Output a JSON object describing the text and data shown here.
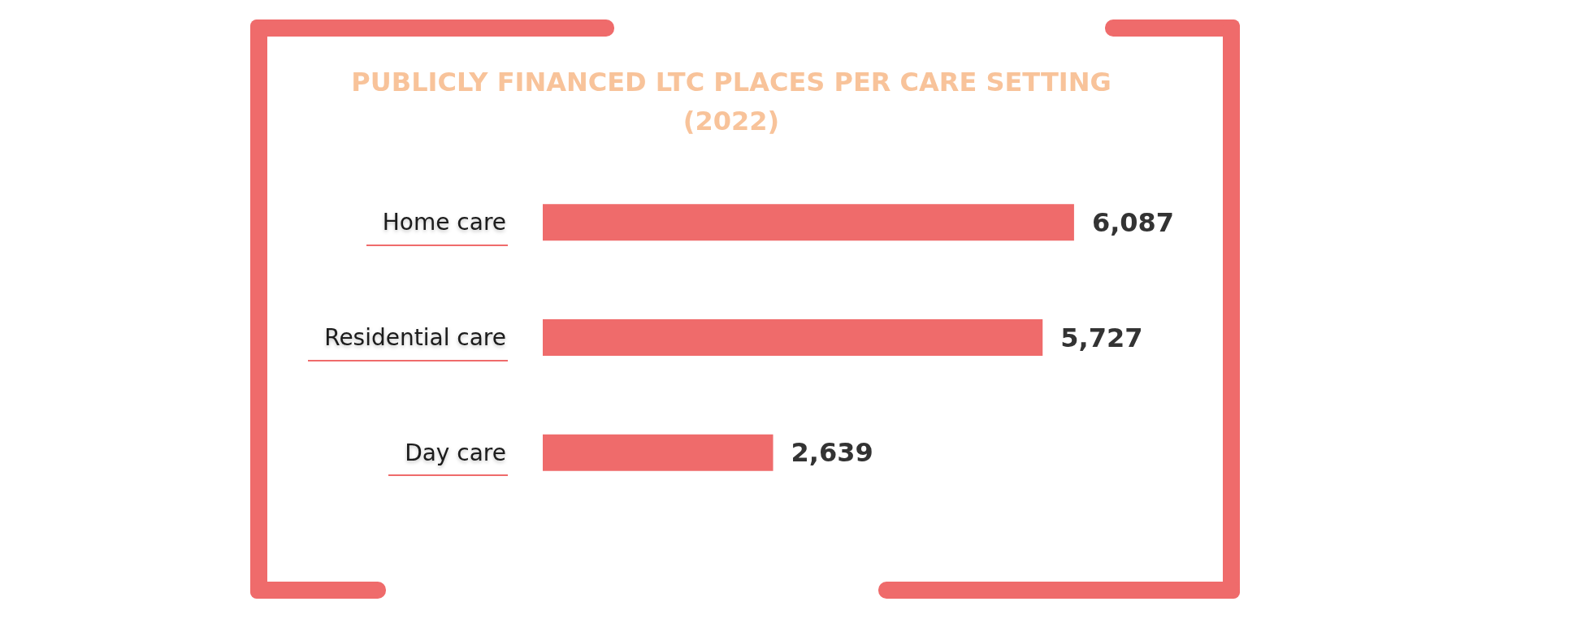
{
  "chart_data": {
    "type": "bar",
    "orientation": "horizontal",
    "title": "PUBLICLY FINANCED LTC PLACES PER CARE SETTING (2022)",
    "categories": [
      "Home care",
      "Residential care",
      "Day care"
    ],
    "values": [
      6087,
      5727,
      2639
    ],
    "value_labels": [
      "6,087",
      "5,727",
      "2,639"
    ],
    "color": "#ef6b6b"
  }
}
